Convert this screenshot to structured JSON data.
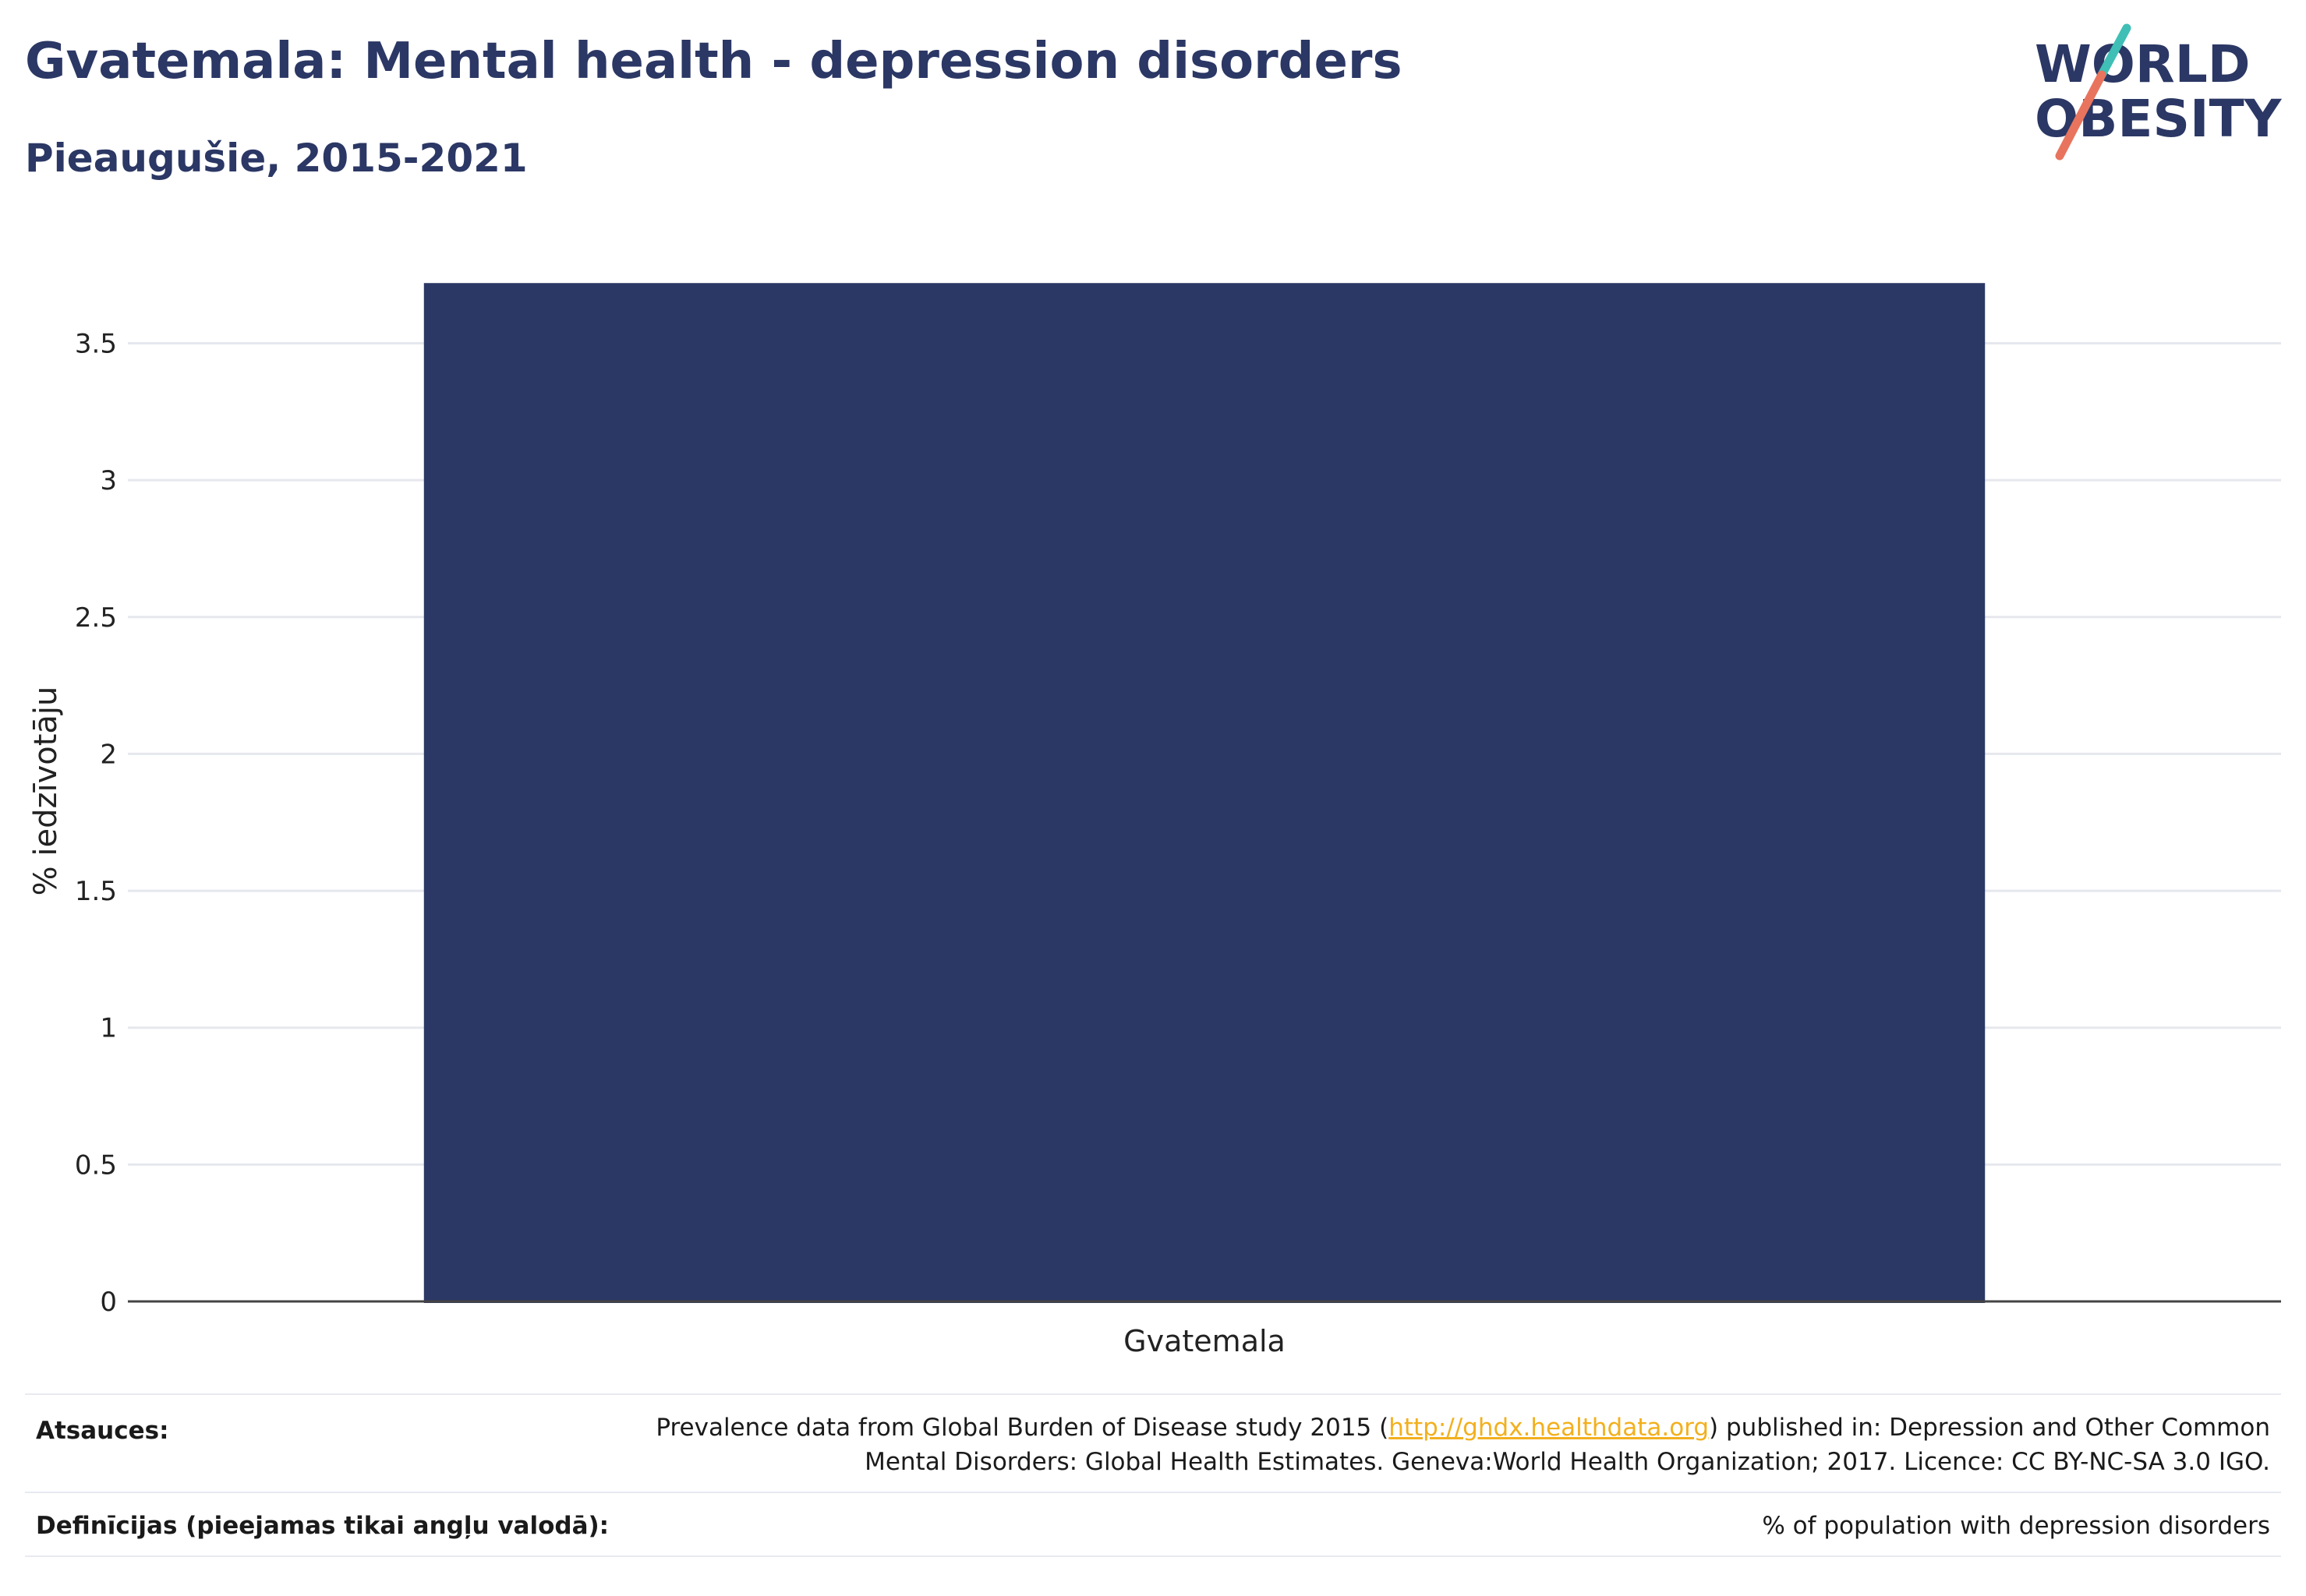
{
  "header": {
    "title": "Gvatemala: Mental health - depression disorders",
    "subtitle": "Pieaugušie, 2015-2021"
  },
  "logo": {
    "line1": "WORLD",
    "line2": "OBESITY",
    "colors": {
      "text": "#2b3764",
      "teal": "#3fbfb5",
      "coral": "#e8745e"
    }
  },
  "chart_data": {
    "type": "bar",
    "categories": [
      "Gvatemala"
    ],
    "values": [
      3.72
    ],
    "ylabel": "% iedzīvotāju",
    "ylim": [
      0,
      3.9
    ],
    "yticks": [
      0,
      0.5,
      1,
      1.5,
      2,
      2.5,
      3,
      3.5
    ],
    "ytick_labels": [
      "0",
      "0.5",
      "1",
      "1.5",
      "2",
      "2.5",
      "3",
      "3.5"
    ],
    "grid": true,
    "bar_color": "#2b3764"
  },
  "footer": {
    "sources_label": "Atsauces:",
    "sources_line1_pre": "Prevalence data from Global Burden of Disease study 2015 (",
    "sources_link": "http://ghdx.healthdata.org",
    "sources_line1_post": ") published in: Depression and Other Common",
    "sources_line2": "Mental Disorders: Global Health Estimates. Geneva:World Health Organization; 2017. Licence: CC BY-NC-SA 3.0 IGO.",
    "definitions_label": "Definīcijas (pieejamas tikai angļu valodā):",
    "definitions_value": "% of population with depression disorders"
  }
}
